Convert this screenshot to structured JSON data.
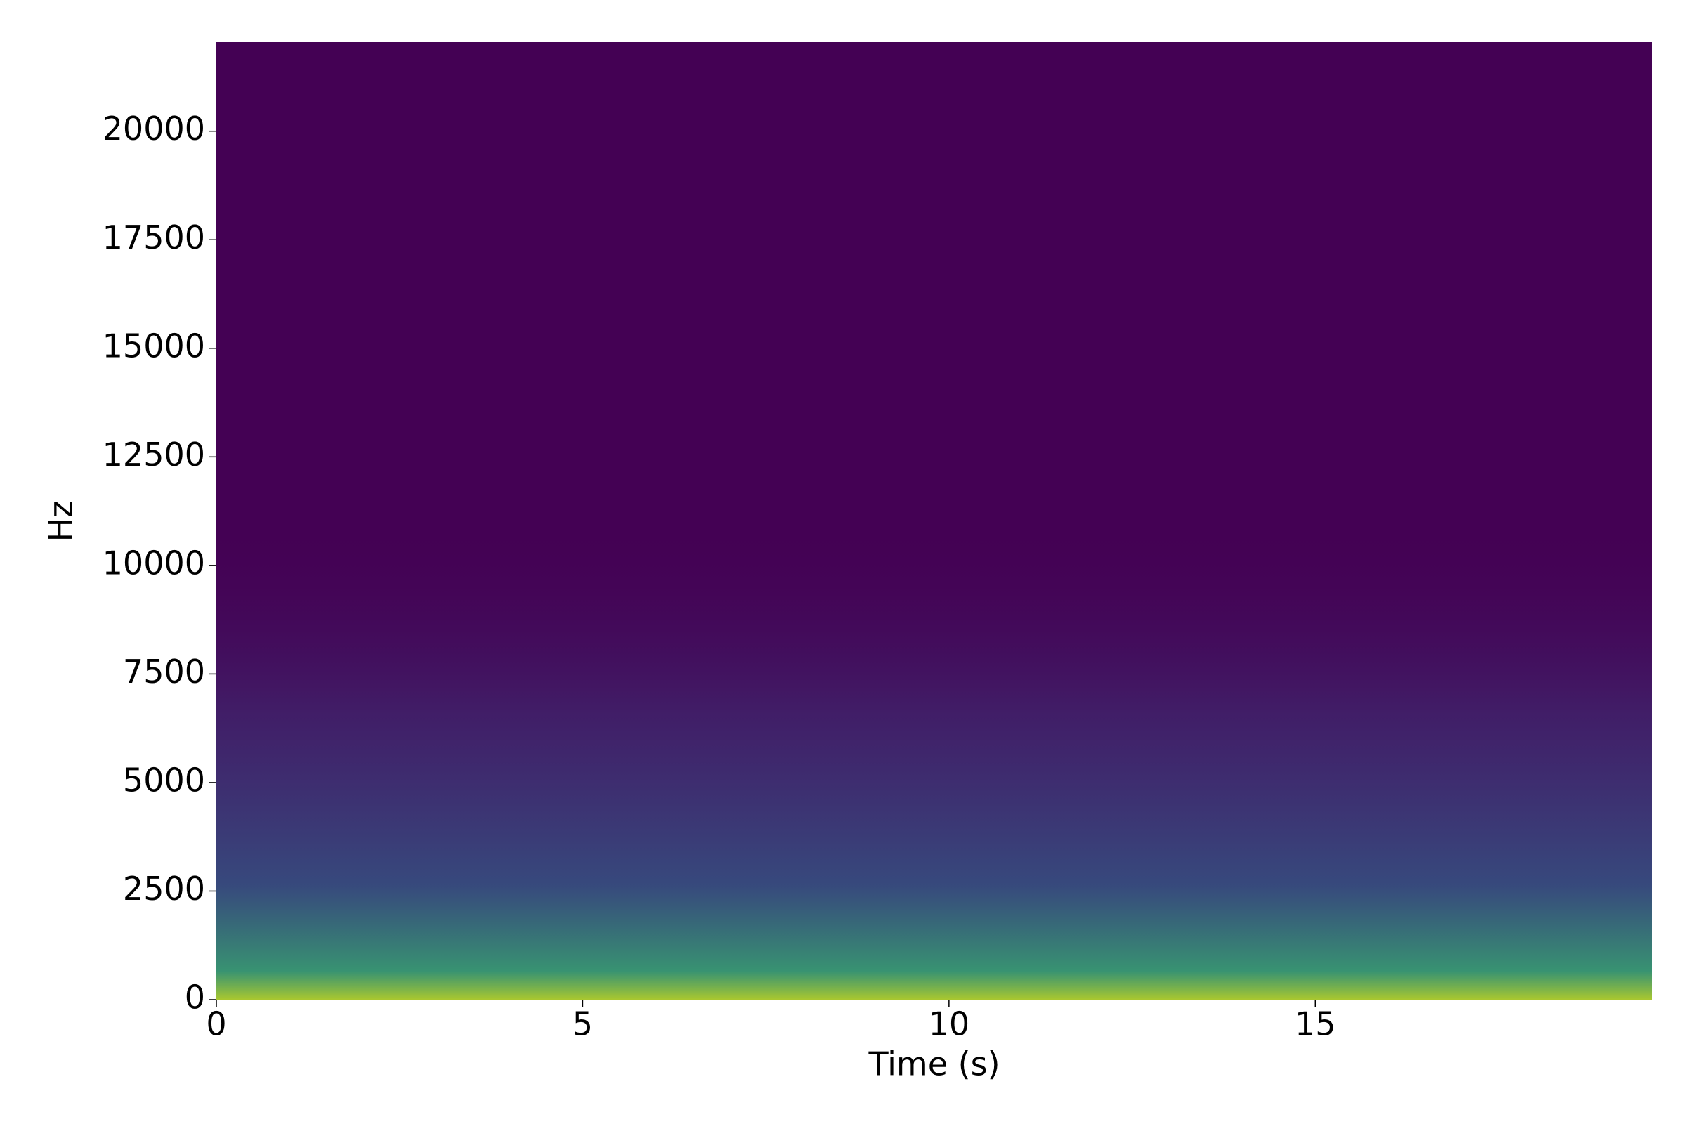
{
  "chart_data": {
    "type": "spectrogram",
    "xlabel": "Time (s)",
    "ylabel": "Hz",
    "xlim": [
      0,
      19.6
    ],
    "xticks": [
      0,
      5,
      10,
      15
    ],
    "ylim": [
      0,
      22050
    ],
    "yticks": [
      0,
      2500,
      5000,
      7500,
      10000,
      12500,
      15000,
      17500,
      20000
    ],
    "background_color": "#440154",
    "grid": false
  }
}
